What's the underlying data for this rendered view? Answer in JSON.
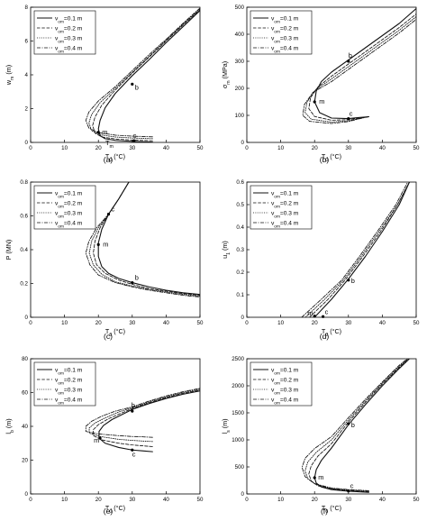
{
  "figure": {
    "legend_entries": [
      "v_om=0.1 m",
      "v_om=0.2 m",
      "v_om=0.3 m",
      "v_om=0.4 m"
    ]
  },
  "chart_data": [
    {
      "id": "a",
      "type": "line",
      "panel_label": "(a)",
      "xlabel": "T_0 (°C)",
      "ylabel": "w_m (m)",
      "xlim": [
        0,
        50
      ],
      "ylim": [
        0,
        8
      ],
      "xticks": [
        0,
        10,
        20,
        30,
        40,
        50
      ],
      "yticks": [
        0,
        2,
        4,
        6,
        8
      ],
      "grid": false,
      "legend": "top-left",
      "series": [
        {
          "name": "v_om=0.1 m",
          "style": "solid",
          "x": [
            36,
            30,
            25,
            22,
            20.5,
            20,
            20.5,
            22,
            25,
            30,
            35,
            40,
            45,
            50
          ],
          "y": [
            0.02,
            0.06,
            0.12,
            0.22,
            0.4,
            0.8,
            1.3,
            2.05,
            2.9,
            3.95,
            4.9,
            5.9,
            6.85,
            7.8
          ]
        },
        {
          "name": "v_om=0.2 m",
          "style": "dashed",
          "x": [
            36,
            30,
            25,
            21,
            19,
            18.3,
            19,
            21,
            25,
            30,
            35,
            40,
            45,
            50
          ],
          "y": [
            0.1,
            0.14,
            0.2,
            0.32,
            0.55,
            1.0,
            1.5,
            2.2,
            3.1,
            4.1,
            5.05,
            6.0,
            6.95,
            7.85
          ]
        },
        {
          "name": "v_om=0.3 m",
          "style": "dotted",
          "x": [
            36,
            30,
            25,
            20.5,
            18,
            17.2,
            18,
            20.5,
            25,
            30,
            35,
            40,
            45,
            50
          ],
          "y": [
            0.22,
            0.26,
            0.32,
            0.45,
            0.7,
            1.15,
            1.65,
            2.35,
            3.2,
            4.15,
            5.1,
            6.05,
            7.0,
            7.9
          ]
        },
        {
          "name": "v_om=0.4 m",
          "style": "dashdot",
          "x": [
            36,
            30,
            25,
            20,
            17.2,
            16.3,
            17.2,
            20,
            25,
            30,
            35,
            40,
            45,
            50
          ],
          "y": [
            0.33,
            0.37,
            0.43,
            0.58,
            0.85,
            1.3,
            1.8,
            2.45,
            3.3,
            4.25,
            5.2,
            6.1,
            7.05,
            7.95
          ]
        }
      ],
      "markers": [
        {
          "label": "b",
          "x": 30,
          "y": 3.45
        },
        {
          "label": "m",
          "x": 20,
          "y": 0.6
        },
        {
          "label": "c",
          "x": 30.5,
          "y": 0.1
        },
        {
          "label": "T_m",
          "x": 21,
          "y": 0.05
        }
      ]
    },
    {
      "id": "b",
      "type": "line",
      "panel_label": "(b)",
      "xlabel": "T_0 (°C)",
      "ylabel": "σ_m (MPa)",
      "xlim": [
        0,
        50
      ],
      "ylim": [
        0,
        500
      ],
      "xticks": [
        0,
        10,
        20,
        30,
        40,
        50
      ],
      "yticks": [
        0,
        100,
        200,
        300,
        400,
        500
      ],
      "grid": false,
      "legend": "top-left",
      "series": [
        {
          "name": "v_om=0.1 m",
          "style": "solid",
          "x": [
            36,
            33,
            30,
            25,
            21.5,
            20,
            20.5,
            22,
            25,
            30,
            35,
            40,
            45,
            50
          ],
          "y": [
            95,
            92,
            88,
            90,
            110,
            150,
            190,
            225,
            260,
            305,
            350,
            395,
            440,
            495
          ]
        },
        {
          "name": "v_om=0.2 m",
          "style": "dashed",
          "x": [
            36,
            33,
            30,
            25,
            20,
            18.3,
            18.8,
            21,
            25,
            30,
            35,
            40,
            45,
            50
          ],
          "y": [
            95,
            90,
            84,
            82,
            96,
            125,
            165,
            205,
            245,
            290,
            335,
            380,
            425,
            475
          ]
        },
        {
          "name": "v_om=0.3 m",
          "style": "dotted",
          "x": [
            36,
            33,
            30,
            25,
            19,
            17.2,
            17.8,
            20.3,
            25,
            30,
            35,
            40,
            45,
            50
          ],
          "y": [
            95,
            88,
            80,
            75,
            86,
            110,
            150,
            195,
            235,
            280,
            325,
            370,
            415,
            465
          ]
        },
        {
          "name": "v_om=0.4 m",
          "style": "dashdot",
          "x": [
            36,
            33,
            30,
            25,
            18.5,
            16.5,
            17,
            19.5,
            25,
            30,
            35,
            40,
            45,
            50
          ],
          "y": [
            95,
            87,
            77,
            70,
            78,
            100,
            140,
            185,
            225,
            270,
            315,
            360,
            405,
            455
          ]
        }
      ],
      "markers": [
        {
          "label": "b",
          "x": 30,
          "y": 300
        },
        {
          "label": "m",
          "x": 20,
          "y": 150
        },
        {
          "label": "c",
          "x": 30,
          "y": 88
        }
      ]
    },
    {
      "id": "c",
      "type": "line",
      "panel_label": "(c)",
      "xlabel": "T_0 (°C)",
      "ylabel": "P (MN)",
      "xlim": [
        0,
        50
      ],
      "ylim": [
        0,
        0.8
      ],
      "xticks": [
        0,
        10,
        20,
        30,
        40,
        50
      ],
      "yticks": [
        0.0,
        0.2,
        0.4,
        0.6,
        0.8
      ],
      "grid": false,
      "legend": "top-left",
      "series": [
        {
          "name": "v_om=0.1 m",
          "style": "solid",
          "x": [
            29,
            26,
            23,
            21,
            20,
            20,
            21,
            23,
            26,
            30,
            35,
            40,
            45,
            50
          ],
          "y": [
            0.8,
            0.7,
            0.61,
            0.52,
            0.44,
            0.36,
            0.3,
            0.26,
            0.23,
            0.205,
            0.18,
            0.16,
            0.145,
            0.135
          ]
        },
        {
          "name": "v_om=0.2 m",
          "style": "dashed",
          "x": [
            29,
            26,
            23,
            20.5,
            19,
            18.5,
            19.5,
            22,
            26,
            30,
            35,
            40,
            45,
            50
          ],
          "y": [
            0.8,
            0.7,
            0.61,
            0.53,
            0.45,
            0.38,
            0.31,
            0.26,
            0.22,
            0.195,
            0.17,
            0.155,
            0.14,
            0.13
          ]
        },
        {
          "name": "v_om=0.3 m",
          "style": "dotted",
          "x": [
            29,
            26,
            23,
            20,
            18,
            17.3,
            18.5,
            21,
            25,
            30,
            35,
            40,
            45,
            50
          ],
          "y": [
            0.8,
            0.7,
            0.61,
            0.53,
            0.45,
            0.38,
            0.31,
            0.255,
            0.21,
            0.185,
            0.165,
            0.15,
            0.135,
            0.125
          ]
        },
        {
          "name": "v_om=0.4 m",
          "style": "dashdot",
          "x": [
            29,
            26,
            23,
            19.5,
            17.2,
            16.3,
            17.5,
            20,
            25,
            30,
            35,
            40,
            45,
            50
          ],
          "y": [
            0.8,
            0.7,
            0.61,
            0.53,
            0.45,
            0.38,
            0.31,
            0.25,
            0.205,
            0.18,
            0.16,
            0.145,
            0.13,
            0.12
          ]
        }
      ],
      "markers": [
        {
          "label": "c",
          "x": 23,
          "y": 0.61
        },
        {
          "label": "m",
          "x": 20,
          "y": 0.43
        },
        {
          "label": "b",
          "x": 30,
          "y": 0.205
        }
      ]
    },
    {
      "id": "d",
      "type": "line",
      "panel_label": "(d)",
      "xlabel": "T_0 (°C)",
      "ylabel": "u_1 (m)",
      "xlim": [
        0,
        50
      ],
      "ylim": [
        0,
        0.6
      ],
      "xticks": [
        0,
        10,
        20,
        30,
        40,
        50
      ],
      "yticks": [
        0.0,
        0.1,
        0.2,
        0.3,
        0.4,
        0.5,
        0.6
      ],
      "grid": false,
      "legend": "top-left",
      "series": [
        {
          "name": "v_om=0.1 m",
          "style": "solid",
          "x": [
            20,
            25,
            30,
            35,
            40,
            45,
            48
          ],
          "y": [
            0.0,
            0.08,
            0.17,
            0.27,
            0.38,
            0.5,
            0.6
          ]
        },
        {
          "name": "v_om=0.2 m",
          "style": "dashed",
          "x": [
            18.5,
            24,
            29,
            34,
            39.5,
            44.5,
            48
          ],
          "y": [
            0.0,
            0.08,
            0.165,
            0.265,
            0.38,
            0.5,
            0.6
          ]
        },
        {
          "name": "v_om=0.3 m",
          "style": "dotted",
          "x": [
            17.3,
            23,
            28.5,
            33.5,
            39,
            44.5,
            48
          ],
          "y": [
            0.0,
            0.08,
            0.165,
            0.265,
            0.38,
            0.5,
            0.6
          ]
        },
        {
          "name": "v_om=0.4 m",
          "style": "dashdot",
          "x": [
            16.2,
            22,
            28,
            33,
            38.5,
            44,
            47.5
          ],
          "y": [
            0.0,
            0.08,
            0.165,
            0.265,
            0.38,
            0.5,
            0.6
          ]
        }
      ],
      "markers": [
        {
          "label": "b",
          "x": 30,
          "y": 0.165
        },
        {
          "label": "m",
          "x": 20,
          "y": 0.005
        },
        {
          "label": "c",
          "x": 22.5,
          "y": 0.003
        }
      ]
    },
    {
      "id": "e",
      "type": "line",
      "panel_label": "(e)",
      "xlabel": "T_0 (°C)",
      "ylabel": "l_b (m)",
      "xlim": [
        0,
        50
      ],
      "ylim": [
        0,
        80
      ],
      "xticks": [
        0,
        10,
        20,
        30,
        40,
        50
      ],
      "yticks": [
        0,
        20,
        40,
        60,
        80
      ],
      "grid": false,
      "legend": "top-left",
      "series": [
        {
          "name": "v_om=0.1 m",
          "style": "solid",
          "x": [
            36,
            33,
            30,
            26,
            22,
            20.2,
            20.2,
            21.5,
            24,
            27,
            30,
            35,
            40,
            45,
            50
          ],
          "y": [
            25,
            25.5,
            26,
            27.5,
            30,
            33,
            37,
            40.5,
            44,
            47,
            50,
            53.5,
            56.5,
            59,
            61
          ]
        },
        {
          "name": "v_om=0.2 m",
          "style": "dashed",
          "x": [
            36,
            33,
            30,
            26,
            21,
            18.5,
            18.5,
            20,
            23,
            27,
            30,
            35,
            40,
            45,
            50
          ],
          "y": [
            28,
            28.5,
            29,
            30,
            32,
            34.5,
            38,
            41,
            44.5,
            48,
            50.5,
            54,
            57,
            59.5,
            61.5
          ]
        },
        {
          "name": "v_om=0.3 m",
          "style": "dotted",
          "x": [
            36,
            33,
            30,
            26,
            20.5,
            17.3,
            17.3,
            19,
            22,
            26,
            30,
            35,
            40,
            45,
            50
          ],
          "y": [
            31,
            31.3,
            31.7,
            32.3,
            34,
            36,
            39,
            42,
            45,
            48.5,
            51,
            54.5,
            57.5,
            60,
            62
          ]
        },
        {
          "name": "v_om=0.4 m",
          "style": "dashdot",
          "x": [
            36,
            33,
            30,
            26,
            20,
            16.3,
            16.3,
            18,
            21,
            25,
            30,
            35,
            40,
            45,
            50
          ],
          "y": [
            33.5,
            33.8,
            34,
            34.5,
            35.5,
            37,
            40,
            43,
            46,
            49,
            51.5,
            55,
            58,
            60.5,
            62.5
          ]
        }
      ],
      "markers": [
        {
          "label": "b",
          "x": 30,
          "y": 49
        },
        {
          "label": "m",
          "x": 20.5,
          "y": 33
        },
        {
          "label": "c",
          "x": 30,
          "y": 26
        }
      ]
    },
    {
      "id": "f",
      "type": "line",
      "panel_label": "(f)",
      "xlabel": "T_0 (°C)",
      "ylabel": "l_s (m)",
      "xlim": [
        0,
        50
      ],
      "ylim": [
        0,
        2500
      ],
      "xticks": [
        0,
        10,
        20,
        30,
        40,
        50
      ],
      "yticks": [
        0,
        500,
        1000,
        1500,
        2000,
        2500
      ],
      "grid": false,
      "legend": "top-left",
      "series": [
        {
          "name": "v_om=0.1 m",
          "style": "solid",
          "x": [
            36,
            30,
            25,
            22,
            20.5,
            20,
            20.5,
            22,
            25,
            30,
            35,
            40,
            45,
            48
          ],
          "y": [
            30,
            50,
            80,
            130,
            200,
            300,
            450,
            620,
            850,
            1280,
            1650,
            2000,
            2320,
            2500
          ]
        },
        {
          "name": "v_om=0.2 m",
          "style": "dashed",
          "x": [
            36,
            30,
            25,
            21,
            19,
            18.3,
            19,
            21,
            25,
            30,
            35,
            40,
            45,
            48
          ],
          "y": [
            40,
            60,
            90,
            150,
            240,
            370,
            520,
            700,
            930,
            1330,
            1690,
            2030,
            2340,
            2510
          ]
        },
        {
          "name": "v_om=0.3 m",
          "style": "dotted",
          "x": [
            36,
            30,
            25,
            20.5,
            18,
            17.2,
            18,
            20.5,
            25,
            30,
            35,
            40,
            45,
            48
          ],
          "y": [
            50,
            70,
            100,
            170,
            280,
            430,
            590,
            770,
            1000,
            1370,
            1720,
            2050,
            2360,
            2520
          ]
        },
        {
          "name": "v_om=0.4 m",
          "style": "dashdot",
          "x": [
            36,
            30,
            25,
            20,
            17.2,
            16.3,
            17.2,
            20,
            25,
            30,
            35,
            40,
            45,
            48
          ],
          "y": [
            60,
            80,
            110,
            190,
            320,
            490,
            660,
            840,
            1060,
            1410,
            1750,
            2070,
            2380,
            2530
          ]
        }
      ],
      "markers": [
        {
          "label": "b",
          "x": 30,
          "y": 1300
        },
        {
          "label": "m",
          "x": 20,
          "y": 300
        },
        {
          "label": "c",
          "x": 30,
          "y": 55
        }
      ]
    }
  ]
}
